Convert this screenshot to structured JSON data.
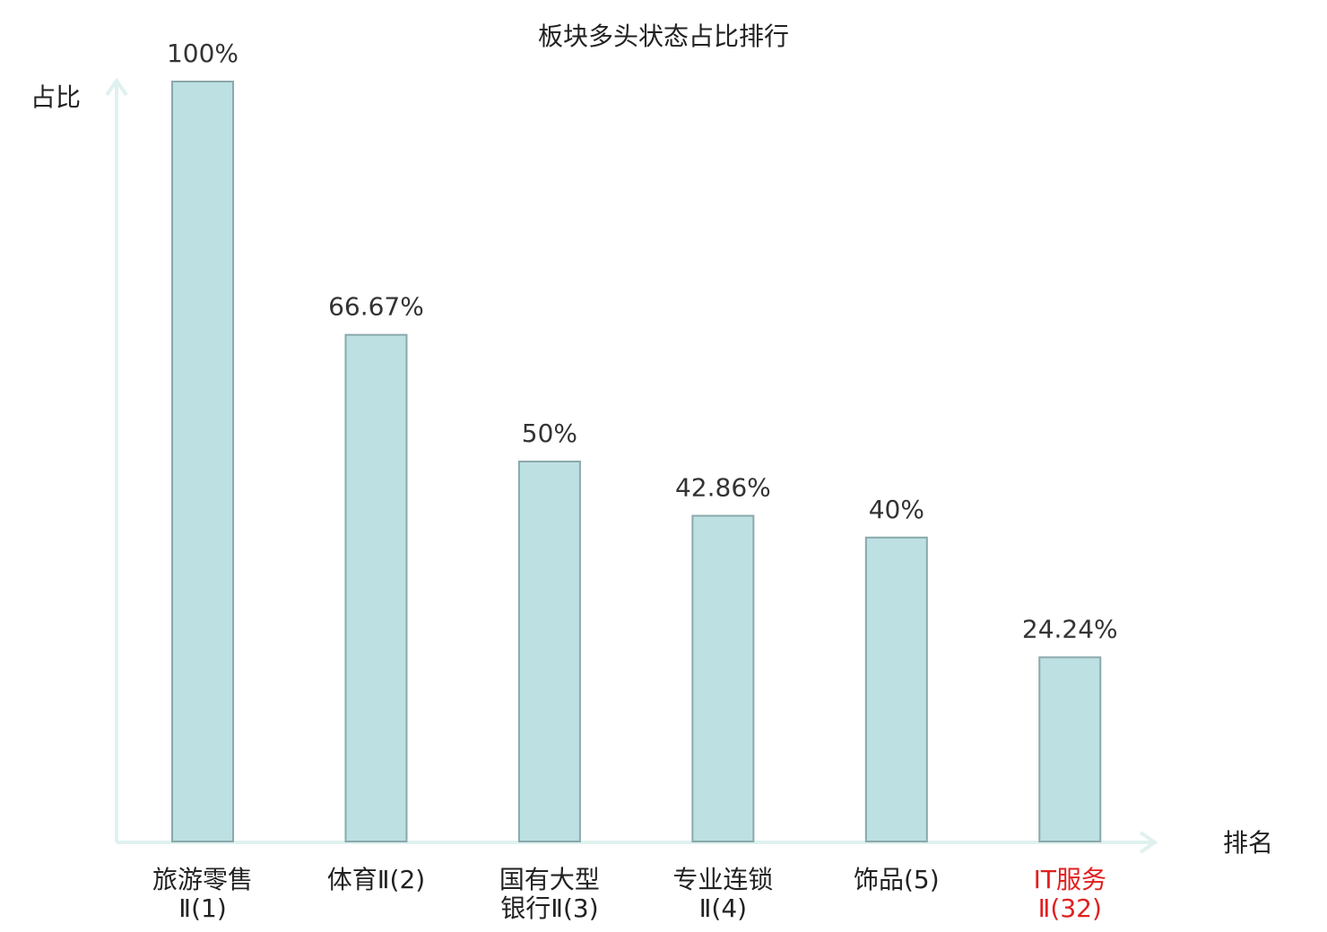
{
  "chart_data": {
    "type": "bar",
    "title": "板块多头状态占比排行",
    "y_label": "占比",
    "x_label": "排名",
    "categories": [
      [
        "旅游零售",
        "Ⅱ(1)"
      ],
      [
        "体育Ⅱ(2)"
      ],
      [
        "国有大型",
        "银行Ⅱ(3)"
      ],
      [
        "专业连锁",
        "Ⅱ(4)"
      ],
      [
        "饰品(5)"
      ],
      [
        "IT服务",
        "Ⅱ(32)"
      ]
    ],
    "category_colors": [
      "#222222",
      "#222222",
      "#222222",
      "#222222",
      "#222222",
      "#e02020"
    ],
    "values": [
      100,
      66.67,
      50,
      42.86,
      40,
      24.24
    ],
    "value_labels": [
      "100%",
      "66.67%",
      "50%",
      "42.86%",
      "40%",
      "24.24%"
    ],
    "color": "#bde0e3",
    "ylim": [
      0,
      100
    ]
  }
}
